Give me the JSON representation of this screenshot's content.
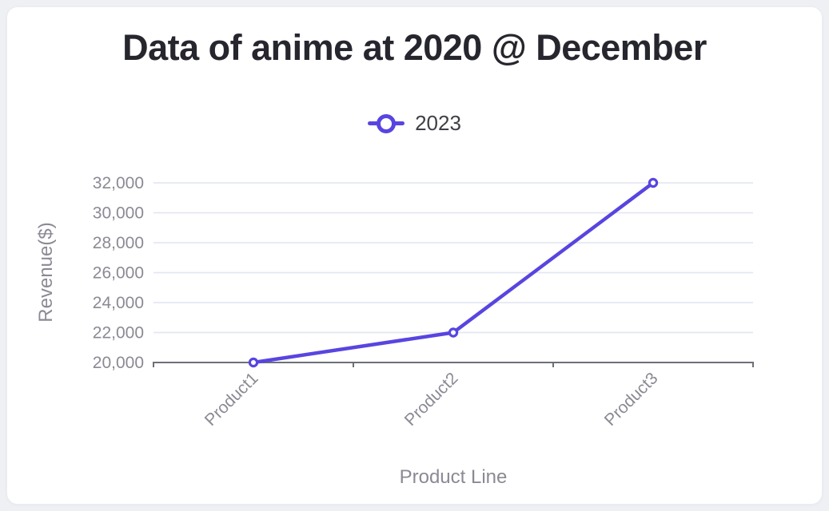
{
  "page": {
    "background_color": "#eef0f4",
    "card_background_color": "#ffffff"
  },
  "chart_data": {
    "type": "line",
    "title": "Data of anime at 2020 @ December",
    "xlabel": "Product Line",
    "ylabel": "Revenue($)",
    "categories": [
      "Product1",
      "Product2",
      "Product3"
    ],
    "series": [
      {
        "name": "2023",
        "values": [
          20000,
          22000,
          32000
        ],
        "color": "#5845e0"
      }
    ],
    "ylim": [
      20000,
      32000
    ],
    "y_ticks": [
      20000,
      22000,
      24000,
      26000,
      28000,
      30000,
      32000
    ],
    "y_tick_labels": [
      "20,000",
      "22,000",
      "24,000",
      "26,000",
      "28,000",
      "30,000",
      "32,000"
    ],
    "x_tick_rotation_deg": -45,
    "grid": true,
    "legend_position": "top-center",
    "colors": {
      "accent": "#5845e0",
      "grid_line": "#e4e7f2",
      "axis_line": "#6d6f77",
      "tick_label": "#8a8a94",
      "axis_title": "#8a8a94",
      "title_text": "#26262e",
      "legend_text": "#3f3f47",
      "marker_fill": "#ffffff"
    }
  }
}
